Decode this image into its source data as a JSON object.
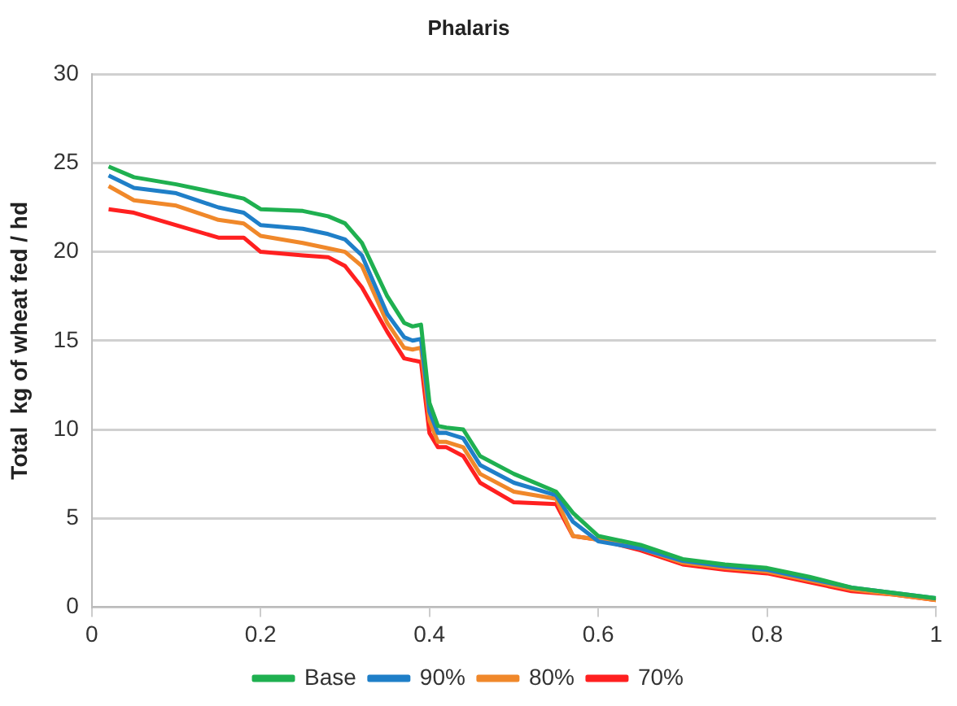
{
  "chart_data": {
    "type": "line",
    "title": "Phalaris",
    "ylabel": "Total  kg of wheat fed / hd",
    "x": [
      0.02,
      0.05,
      0.1,
      0.15,
      0.18,
      0.2,
      0.25,
      0.28,
      0.3,
      0.32,
      0.35,
      0.37,
      0.38,
      0.39,
      0.4,
      0.41,
      0.42,
      0.44,
      0.46,
      0.5,
      0.55,
      0.57,
      0.6,
      0.65,
      0.7,
      0.75,
      0.8,
      0.85,
      0.9,
      0.95,
      1.0
    ],
    "series": [
      {
        "name": "Base",
        "color": "#1fb050",
        "values": [
          24.8,
          24.2,
          23.8,
          23.3,
          23.0,
          22.4,
          22.3,
          22.0,
          21.6,
          20.5,
          17.5,
          16.0,
          15.8,
          15.9,
          11.5,
          10.2,
          10.1,
          10.0,
          8.5,
          7.5,
          6.5,
          5.3,
          4.0,
          3.5,
          2.7,
          2.4,
          2.2,
          1.7,
          1.1,
          0.8,
          0.5
        ]
      },
      {
        "name": "90%",
        "color": "#1f7fc8",
        "values": [
          24.3,
          23.6,
          23.3,
          22.5,
          22.2,
          21.5,
          21.3,
          21.0,
          20.7,
          19.8,
          16.5,
          15.2,
          15.0,
          15.1,
          11.0,
          9.8,
          9.8,
          9.5,
          8.0,
          7.0,
          6.3,
          4.8,
          3.7,
          3.3,
          2.6,
          2.3,
          2.1,
          1.6,
          1.1,
          0.8,
          0.5
        ]
      },
      {
        "name": "80%",
        "color": "#f0882a",
        "values": [
          23.7,
          22.9,
          22.6,
          21.8,
          21.6,
          20.9,
          20.5,
          20.2,
          20.0,
          19.2,
          16.0,
          14.6,
          14.5,
          14.6,
          10.5,
          9.3,
          9.3,
          9.0,
          7.5,
          6.5,
          6.1,
          4.0,
          3.8,
          3.3,
          2.5,
          2.2,
          2.0,
          1.5,
          1.0,
          0.7,
          0.4
        ]
      },
      {
        "name": "70%",
        "color": "#ff2020",
        "values": [
          22.4,
          22.2,
          21.5,
          20.8,
          20.8,
          20.0,
          19.8,
          19.7,
          19.2,
          18.0,
          15.5,
          14.0,
          13.9,
          13.8,
          9.8,
          9.0,
          9.0,
          8.5,
          7.0,
          5.9,
          5.8,
          4.0,
          3.8,
          3.2,
          2.4,
          2.1,
          1.9,
          1.4,
          0.9,
          0.7,
          0.4
        ]
      }
    ],
    "xlim": [
      0,
      1
    ],
    "xticks": [
      0,
      0.2,
      0.4,
      0.6,
      0.8,
      1
    ],
    "ylim": [
      0,
      30
    ],
    "yticks": [
      0,
      5,
      10,
      15,
      20,
      25,
      30
    ],
    "grid": "y",
    "legend": "bottom",
    "marker": "none",
    "line_style": "solid"
  }
}
